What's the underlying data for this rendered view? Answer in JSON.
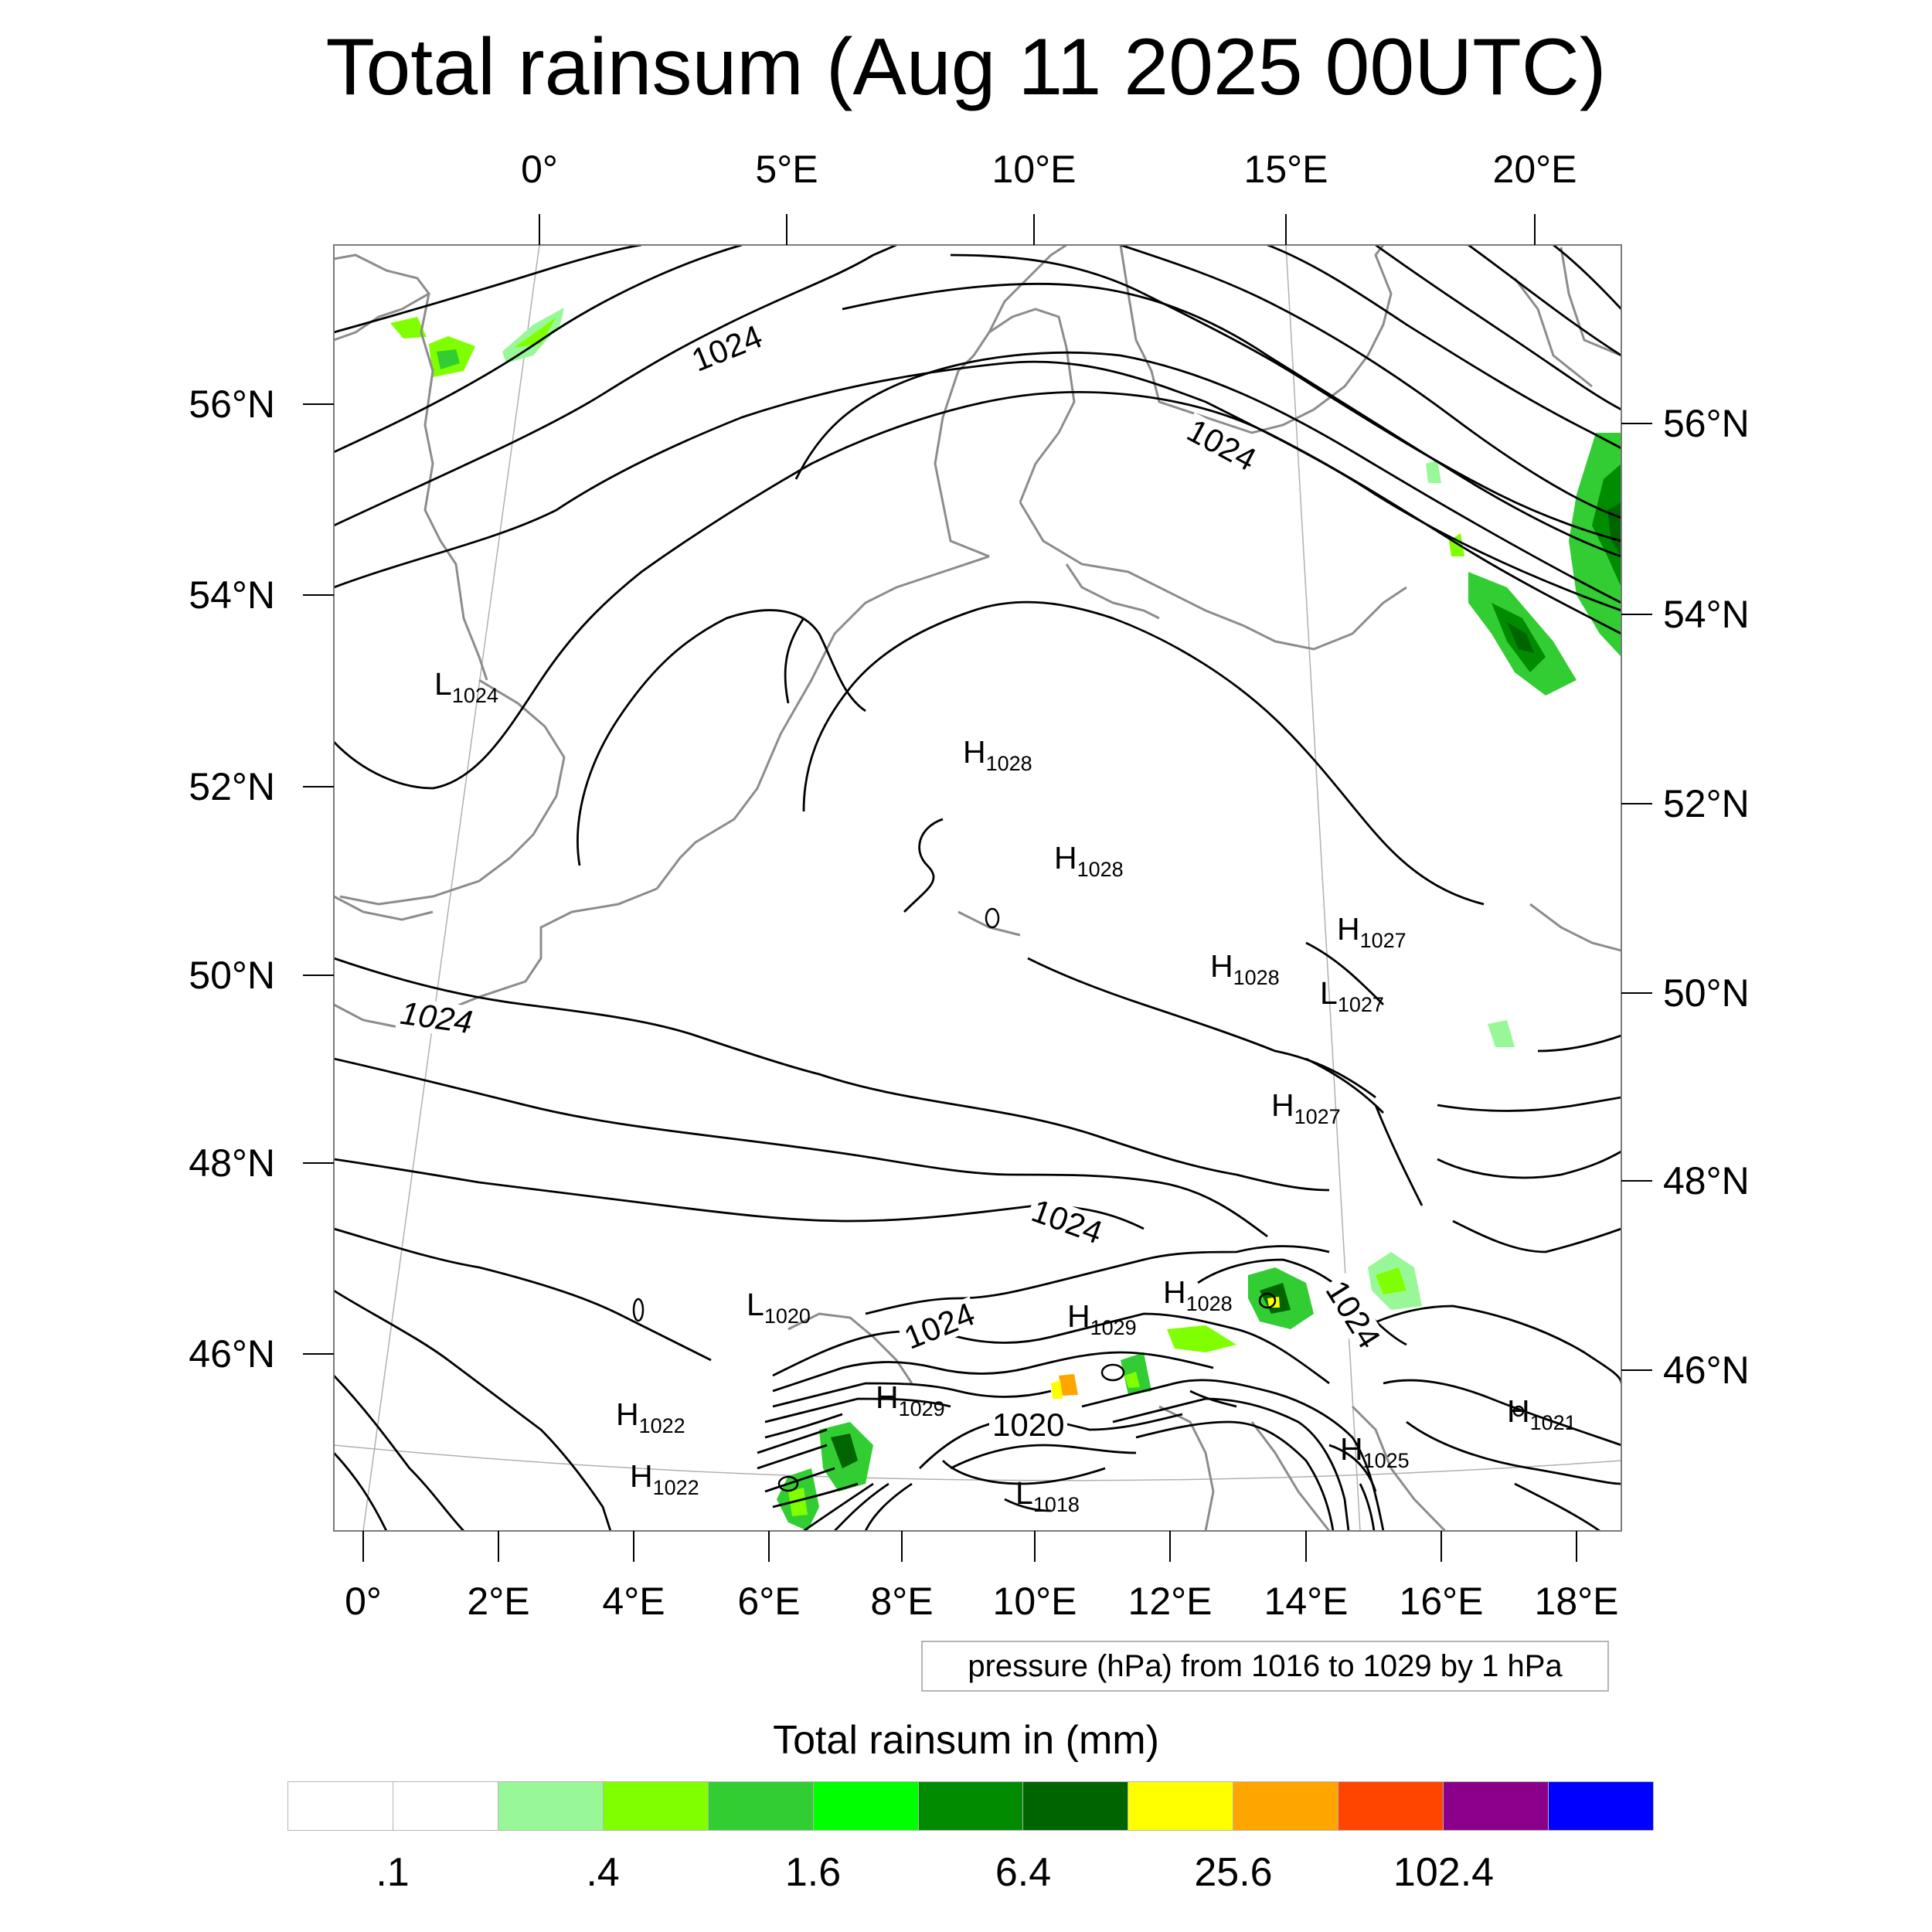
{
  "title": "Total rainsum (Aug 11 2025 00UTC)",
  "top_lon_labels": [
    "0°",
    "5°E",
    "10°E",
    "15°E",
    "20°E"
  ],
  "bottom_lon_labels": [
    "0°",
    "2°E",
    "4°E",
    "6°E",
    "8°E",
    "10°E",
    "12°E",
    "14°E",
    "16°E",
    "18°E"
  ],
  "left_lat_labels": [
    "56°N",
    "54°N",
    "52°N",
    "50°N",
    "48°N",
    "46°N"
  ],
  "right_lat_labels": [
    "56°N",
    "54°N",
    "52°N",
    "50°N",
    "48°N",
    "46°N"
  ],
  "pressure_centers": [
    {
      "letter": "L",
      "value": "1024"
    },
    {
      "letter": "H",
      "value": "1028"
    },
    {
      "letter": "H",
      "value": "1028"
    },
    {
      "letter": "H",
      "value": "1027"
    },
    {
      "letter": "H",
      "value": "1028"
    },
    {
      "letter": "L",
      "value": "1027"
    },
    {
      "letter": "H",
      "value": "1027"
    },
    {
      "letter": "L",
      "value": "1020"
    },
    {
      "letter": "H",
      "value": "1029"
    },
    {
      "letter": "H",
      "value": "1028"
    },
    {
      "letter": "H",
      "value": "1029"
    },
    {
      "letter": "H",
      "value": "1022"
    },
    {
      "letter": "H",
      "value": "1022"
    },
    {
      "letter": "L",
      "value": "1018"
    },
    {
      "letter": "H",
      "value": "1025"
    },
    {
      "letter": "H",
      "value": "1021"
    }
  ],
  "contour_labels": [
    "1024",
    "1024",
    "1024",
    "1024",
    "1024",
    "1024",
    "1020"
  ],
  "info_box": "pressure (hPa) from 1016 to 1029 by 1 hPa",
  "colorbar": {
    "title": "Total rainsum in (mm)",
    "colors": [
      "#ffffff",
      "#ffffff",
      "#98f898",
      "#7fff00",
      "#32cd32",
      "#00ff00",
      "#008b00",
      "#006400",
      "#ffff00",
      "#ffa500",
      "#ff4500",
      "#8b008b",
      "#0000ff"
    ],
    "labels": [
      ".1",
      ".4",
      "1.6",
      "6.4",
      "25.6",
      "102.4"
    ]
  }
}
